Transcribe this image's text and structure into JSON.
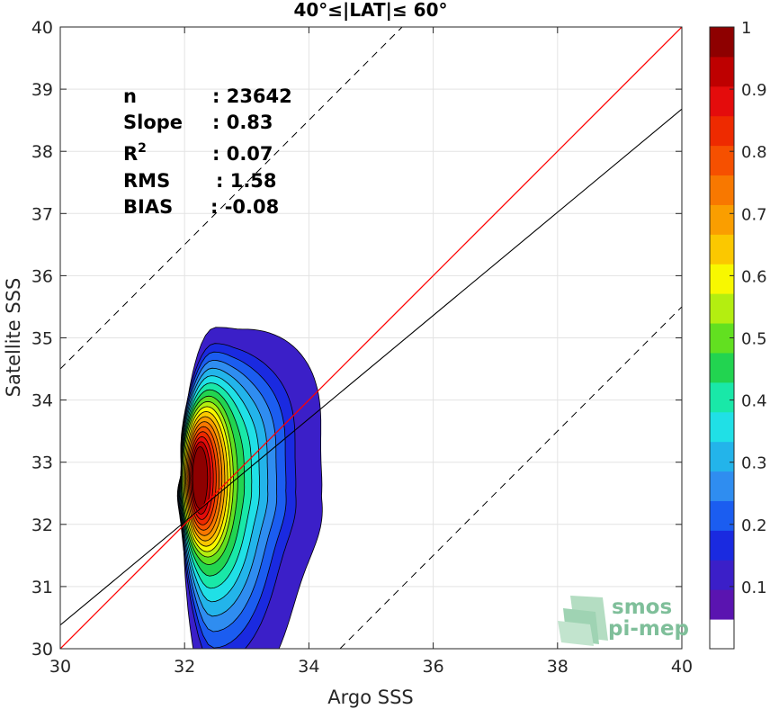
{
  "chart_data": {
    "type": "contour",
    "title": "40°≤|LAT|≤ 60°",
    "xlabel": "Argo SSS",
    "ylabel": "Satellite SSS",
    "xlim": [
      30,
      40
    ],
    "ylim": [
      30,
      40
    ],
    "xticks": [
      30,
      32,
      34,
      36,
      38,
      40
    ],
    "yticks": [
      30,
      31,
      32,
      33,
      34,
      35,
      36,
      37,
      38,
      39,
      40
    ],
    "grid": true,
    "stats": [
      {
        "label": "n",
        "value": ": 23642"
      },
      {
        "label": "Slope",
        "value": ": 0.83"
      },
      {
        "label": "R",
        "sup": "2",
        "value": ": 0.07"
      },
      {
        "label": "RMS",
        "value": ": 1.58"
      },
      {
        "label": "BIAS",
        "value": ": -0.08"
      }
    ],
    "lines": {
      "identity": {
        "slope": 1,
        "intercept": 0,
        "color": "#ff0000"
      },
      "fit": {
        "x": [
          30,
          40
        ],
        "y": [
          30.38,
          38.68
        ],
        "color": "#000000"
      },
      "bounds_offset": 4.5
    },
    "density": {
      "center": [
        32.5,
        32.7
      ],
      "levels": [
        0.05,
        0.1,
        0.15,
        0.2,
        0.25,
        0.3,
        0.35,
        0.4,
        0.45,
        0.5,
        0.55,
        0.6,
        0.65,
        0.7,
        0.75,
        0.8,
        0.85,
        0.9,
        0.95
      ],
      "colors": [
        "#3b1fc8",
        "#1a2ae0",
        "#1b5df0",
        "#2f8df0",
        "#23b4ea",
        "#20e0e6",
        "#19e8a8",
        "#22d450",
        "#62e020",
        "#b4ee10",
        "#f8f800",
        "#fbc800",
        "#fa9e00",
        "#f87800",
        "#f65000",
        "#ee2a00",
        "#e40c0c",
        "#be0000",
        "#8e0000"
      ]
    },
    "colorbar": {
      "range": [
        0,
        1
      ],
      "ticks": [
        0.1,
        0.2,
        0.3,
        0.4,
        0.5,
        0.6,
        0.7,
        0.8,
        0.9,
        1
      ],
      "tick_labels": [
        "0.1",
        "0.2",
        "0.3",
        "0.4",
        "0.5",
        "0.6",
        "0.7",
        "0.8",
        "0.9",
        "1"
      ],
      "colors": [
        "#ffffff",
        "#5a14b0",
        "#3b1fc8",
        "#1a2ae0",
        "#1b5df0",
        "#2f8df0",
        "#23b4ea",
        "#20e0e6",
        "#19e8a8",
        "#22d450",
        "#62e020",
        "#b4ee10",
        "#f8f800",
        "#fbc800",
        "#fa9e00",
        "#f87800",
        "#f65000",
        "#ee2a00",
        "#e40c0c",
        "#be0000",
        "#8e0000"
      ]
    }
  },
  "logo": {
    "line1": "smos",
    "line2": "pi-mep"
  }
}
